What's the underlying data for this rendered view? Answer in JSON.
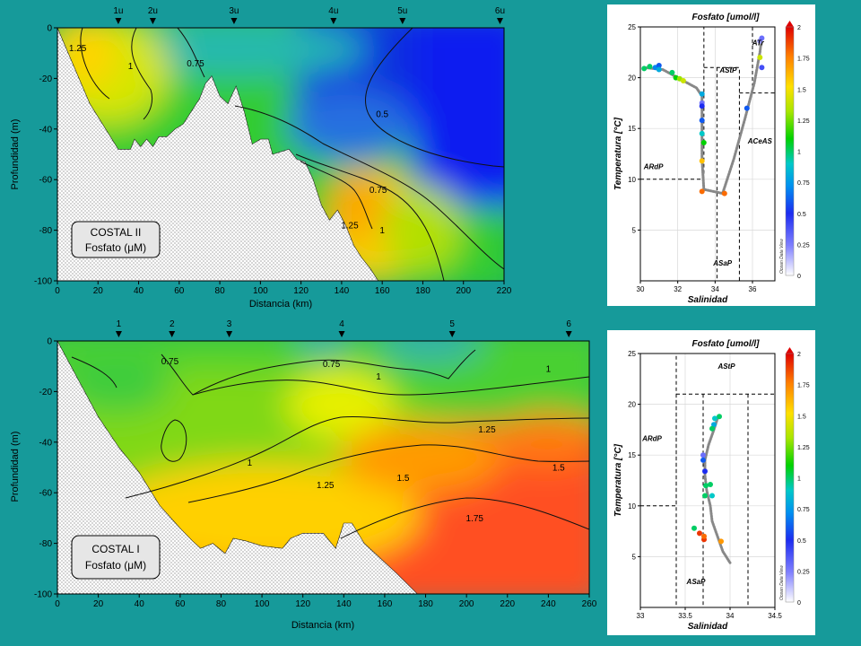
{
  "chart_data": [
    {
      "type": "heatmap",
      "id": "costal2",
      "title": "",
      "box_label": [
        "COSTAL II",
        "Fosfato (μM)"
      ],
      "xlabel": "Distancia (km)",
      "ylabel": "Profundidad (m)",
      "xlim": [
        0,
        220
      ],
      "ylim": [
        -100,
        0
      ],
      "xticks": [
        0,
        20,
        40,
        60,
        80,
        100,
        120,
        140,
        160,
        180,
        200,
        220
      ],
      "yticks": [
        0,
        -20,
        -40,
        -60,
        -80,
        -100
      ],
      "stations": [
        {
          "label": "1u",
          "x": 30
        },
        {
          "label": "2u",
          "x": 47
        },
        {
          "label": "3u",
          "x": 87
        },
        {
          "label": "4u",
          "x": 136
        },
        {
          "label": "5u",
          "x": 170
        },
        {
          "label": "6u",
          "x": 218
        }
      ],
      "bottom_profile": [
        [
          0,
          0
        ],
        [
          16,
          -30
        ],
        [
          30,
          -48
        ],
        [
          36,
          -48
        ],
        [
          38,
          -44
        ],
        [
          41,
          -47
        ],
        [
          44,
          -44
        ],
        [
          47,
          -47
        ],
        [
          50,
          -43
        ],
        [
          54,
          -43
        ],
        [
          58,
          -40
        ],
        [
          62,
          -38
        ],
        [
          66,
          -33
        ],
        [
          70,
          -28
        ],
        [
          73,
          -22
        ],
        [
          76,
          -19
        ],
        [
          80,
          -27
        ],
        [
          84,
          -30
        ],
        [
          88,
          -23
        ],
        [
          92,
          -33
        ],
        [
          96,
          -46
        ],
        [
          100,
          -44
        ],
        [
          104,
          -44
        ],
        [
          106,
          -50
        ],
        [
          110,
          -49
        ],
        [
          114,
          -48
        ],
        [
          118,
          -52
        ],
        [
          122,
          -53
        ],
        [
          126,
          -60
        ],
        [
          130,
          -70
        ],
        [
          134,
          -76
        ],
        [
          138,
          -72
        ],
        [
          142,
          -78
        ],
        [
          146,
          -86
        ],
        [
          150,
          -91
        ],
        [
          154,
          -95
        ],
        [
          158,
          -100
        ]
      ],
      "contours": [
        {
          "level": "1.25",
          "label_at": [
            10,
            -8
          ]
        },
        {
          "level": "1",
          "label_at": [
            36,
            -15
          ]
        },
        {
          "level": "0.75",
          "label_at": [
            68,
            -14
          ]
        },
        {
          "level": "0.5",
          "label_at": [
            160,
            -34
          ]
        },
        {
          "level": "0.75",
          "label_at": [
            158,
            -64
          ]
        },
        {
          "level": "1.25",
          "label_at": [
            144,
            -78
          ]
        },
        {
          "level": "1",
          "label_at": [
            160,
            -80
          ]
        }
      ]
    },
    {
      "type": "heatmap",
      "id": "costal1",
      "title": "",
      "box_label": [
        "COSTAL I",
        "Fosfato (μM)"
      ],
      "xlabel": "Distancia (km)",
      "ylabel": "Profundidad (m)",
      "xlim": [
        0,
        260
      ],
      "ylim": [
        -100,
        0
      ],
      "xticks": [
        0,
        20,
        40,
        60,
        80,
        100,
        120,
        140,
        160,
        180,
        200,
        220,
        240,
        260
      ],
      "yticks": [
        0,
        -20,
        -40,
        -60,
        -80,
        -100
      ],
      "stations": [
        {
          "label": "1",
          "x": 30
        },
        {
          "label": "2",
          "x": 56
        },
        {
          "label": "3",
          "x": 84
        },
        {
          "label": "4",
          "x": 139
        },
        {
          "label": "5",
          "x": 193
        },
        {
          "label": "6",
          "x": 250
        }
      ],
      "bottom_profile": [
        [
          0,
          0
        ],
        [
          20,
          -30
        ],
        [
          30,
          -42
        ],
        [
          40,
          -52
        ],
        [
          50,
          -65
        ],
        [
          60,
          -74
        ],
        [
          66,
          -79
        ],
        [
          70,
          -82
        ],
        [
          76,
          -80
        ],
        [
          82,
          -84
        ],
        [
          86,
          -78
        ],
        [
          92,
          -79
        ],
        [
          100,
          -81
        ],
        [
          110,
          -82
        ],
        [
          114,
          -78
        ],
        [
          120,
          -76
        ],
        [
          126,
          -76
        ],
        [
          130,
          -76
        ],
        [
          134,
          -80
        ],
        [
          136,
          -82
        ],
        [
          140,
          -72
        ],
        [
          144,
          -72
        ],
        [
          150,
          -80
        ],
        [
          158,
          -86
        ],
        [
          166,
          -92
        ],
        [
          176,
          -100
        ]
      ],
      "contours": [
        {
          "level": "0.75",
          "label_at": [
            55,
            -8
          ]
        },
        {
          "level": "0.75",
          "label_at": [
            134,
            -9
          ]
        },
        {
          "level": "1",
          "label_at": [
            157,
            -14
          ]
        },
        {
          "level": "1",
          "label_at": [
            240,
            -11
          ]
        },
        {
          "level": "1.25",
          "label_at": [
            210,
            -35
          ]
        },
        {
          "level": "1",
          "label_at": [
            94,
            -48
          ]
        },
        {
          "level": "1.25",
          "label_at": [
            131,
            -57
          ]
        },
        {
          "level": "1.5",
          "label_at": [
            169,
            -54
          ]
        },
        {
          "level": "1.5",
          "label_at": [
            245,
            -50
          ]
        },
        {
          "level": "1.75",
          "label_at": [
            204,
            -70
          ]
        }
      ]
    },
    {
      "type": "scatter",
      "id": "ts_costal2",
      "title": "Fosfato [umol/l]",
      "xlabel": "Salinidad",
      "ylabel": "Temperatura [°C]",
      "xlim": [
        30,
        37.2
      ],
      "ylim": [
        0,
        25
      ],
      "xticks": [
        30,
        32,
        34,
        36
      ],
      "yticks": [
        5,
        10,
        15,
        20,
        25
      ],
      "water_masses": [
        "ATr",
        "AStP",
        "ACeAS",
        "ARdP",
        "ASaP"
      ],
      "water_mass_positions": [
        [
          36.3,
          23.2
        ],
        [
          34.7,
          20.5
        ],
        [
          36.4,
          13.5
        ],
        [
          30.7,
          11
        ],
        [
          34.4,
          1.5
        ]
      ],
      "colorbar": {
        "min": 0,
        "max": 2,
        "ticks": [
          "0",
          "0.25",
          "0.5",
          "0.75",
          "1",
          "1.25",
          "1.5",
          "1.75",
          "2"
        ]
      },
      "watermark": "Ocean Data View",
      "points": [
        [
          30.2,
          20.9,
          1.0
        ],
        [
          30.5,
          21.1,
          1.0
        ],
        [
          30.8,
          21.0,
          0.7
        ],
        [
          31.0,
          21.2,
          0.6
        ],
        [
          31.0,
          20.8,
          0.8
        ],
        [
          31.7,
          20.5,
          1.0
        ],
        [
          31.9,
          20.0,
          1.1
        ],
        [
          32.1,
          19.9,
          1.3
        ],
        [
          32.3,
          19.7,
          1.4
        ],
        [
          33.3,
          18.4,
          0.8
        ],
        [
          33.3,
          17.5,
          0.3
        ],
        [
          33.3,
          17.2,
          0.5
        ],
        [
          33.3,
          15.8,
          0.6
        ],
        [
          33.3,
          14.5,
          0.9
        ],
        [
          33.4,
          13.6,
          1.1
        ],
        [
          33.3,
          11.8,
          1.6
        ],
        [
          33.3,
          8.8,
          1.8
        ],
        [
          34.5,
          8.6,
          1.8
        ],
        [
          35.7,
          17.0,
          0.6
        ],
        [
          36.5,
          21.0,
          0.4
        ],
        [
          36.4,
          23.6,
          0.2
        ],
        [
          36.5,
          23.9,
          0.3
        ],
        [
          36.4,
          22.0,
          1.4
        ]
      ],
      "trend": [
        [
          30.2,
          21.0
        ],
        [
          31.2,
          20.8
        ],
        [
          32.2,
          19.8
        ],
        [
          33.0,
          19.0
        ],
        [
          33.3,
          18.2
        ],
        [
          33.3,
          15.0
        ],
        [
          33.3,
          12.0
        ],
        [
          33.4,
          9.0
        ],
        [
          34.4,
          8.6
        ],
        [
          35.0,
          12.0
        ],
        [
          35.6,
          16.0
        ],
        [
          36.1,
          19.5
        ],
        [
          36.4,
          22.5
        ],
        [
          36.5,
          24.0
        ]
      ]
    },
    {
      "type": "scatter",
      "id": "ts_costal1",
      "title": "Fosfato [umol/l]",
      "xlabel": "Salinidad",
      "ylabel": "Temperatura [°C]",
      "xlim": [
        33,
        34.5
      ],
      "ylim": [
        0,
        25
      ],
      "xticks": [
        33,
        33.5,
        34,
        34.5
      ],
      "yticks": [
        5,
        10,
        15,
        20,
        25
      ],
      "water_masses": [
        "AStP",
        "ARdP",
        "ASaP"
      ],
      "water_mass_positions": [
        [
          33.96,
          23.5
        ],
        [
          33.13,
          16.4
        ],
        [
          33.62,
          2.3
        ]
      ],
      "colorbar": {
        "min": 0,
        "max": 2,
        "ticks": [
          "0",
          "0.25",
          "0.5",
          "0.75",
          "1",
          "1.25",
          "1.5",
          "1.75",
          "2"
        ]
      },
      "watermark": "Ocean Data View",
      "points": [
        [
          33.88,
          18.8,
          1.0
        ],
        [
          33.83,
          18.6,
          0.9
        ],
        [
          33.82,
          18.0,
          0.8
        ],
        [
          33.8,
          17.6,
          1.0
        ],
        [
          33.7,
          15.0,
          0.3
        ],
        [
          33.7,
          14.5,
          0.6
        ],
        [
          33.72,
          13.4,
          0.5
        ],
        [
          33.73,
          12.0,
          1.0
        ],
        [
          33.78,
          12.1,
          1.0
        ],
        [
          33.8,
          11.0,
          0.9
        ],
        [
          33.72,
          11.0,
          1.0
        ],
        [
          33.6,
          7.8,
          1.0
        ],
        [
          33.66,
          7.3,
          1.9
        ],
        [
          33.71,
          6.7,
          1.9
        ],
        [
          33.71,
          7.0,
          1.8
        ],
        [
          33.9,
          6.5,
          1.7
        ]
      ],
      "trend": [
        [
          33.86,
          18.6
        ],
        [
          33.82,
          17.5
        ],
        [
          33.76,
          16.0
        ],
        [
          33.72,
          14.5
        ],
        [
          33.72,
          13.0
        ],
        [
          33.74,
          11.5
        ],
        [
          33.78,
          10.0
        ],
        [
          33.8,
          8.5
        ],
        [
          33.86,
          7.0
        ],
        [
          33.92,
          5.5
        ],
        [
          34.0,
          4.4
        ]
      ]
    }
  ]
}
